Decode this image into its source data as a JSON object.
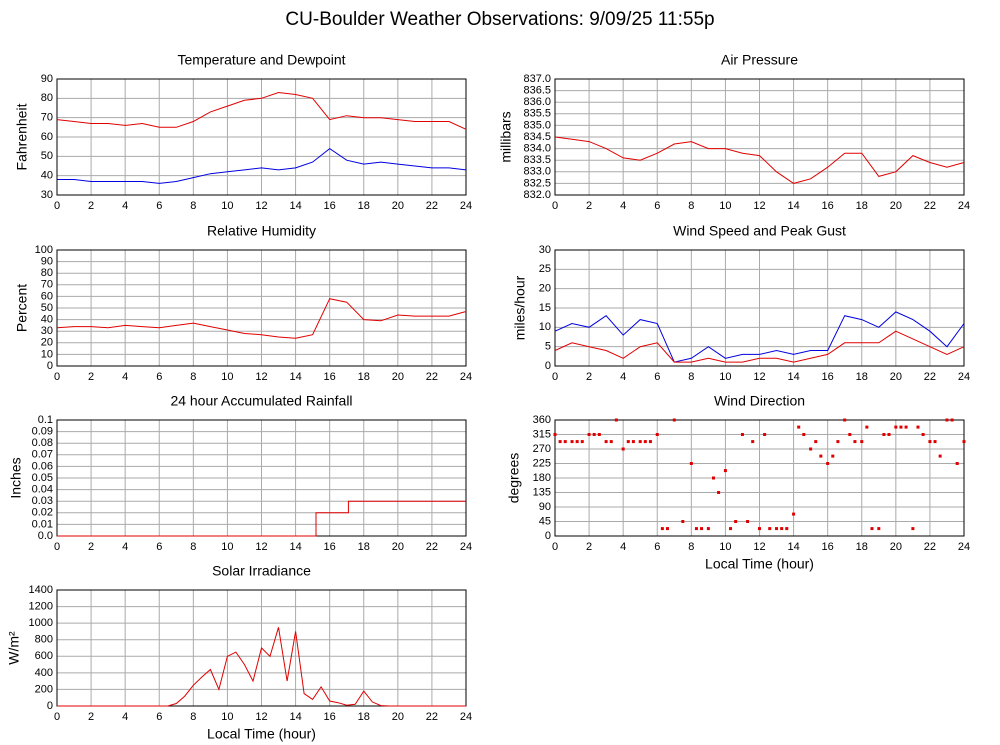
{
  "title": "CU-Boulder Weather Observations: 9/09/25 11:55p",
  "chart_data": [
    {
      "type": "line",
      "title": "Temperature and Dewpoint",
      "ylabel": "Fahrenheit",
      "x": [
        0,
        1,
        2,
        3,
        4,
        5,
        6,
        7,
        8,
        9,
        10,
        11,
        12,
        13,
        14,
        15,
        16,
        17,
        18,
        19,
        20,
        21,
        22,
        23,
        24
      ],
      "series": [
        {
          "color": "#e00000",
          "values": [
            69,
            68,
            67,
            67,
            66,
            67,
            65,
            65,
            68,
            73,
            76,
            79,
            80,
            83,
            82,
            80,
            69,
            71,
            70,
            70,
            69,
            68,
            68,
            68,
            64
          ]
        },
        {
          "color": "#0000e0",
          "values": [
            38,
            38,
            37,
            37,
            37,
            37,
            36,
            37,
            39,
            41,
            42,
            43,
            44,
            43,
            44,
            47,
            54,
            48,
            46,
            47,
            46,
            45,
            44,
            44,
            43
          ]
        }
      ],
      "xlim": [
        0,
        24
      ],
      "xticks": [
        0,
        2,
        4,
        6,
        8,
        10,
        12,
        14,
        16,
        18,
        20,
        22,
        24
      ],
      "ylim": [
        30,
        90
      ],
      "yticks": [
        30,
        40,
        50,
        60,
        70,
        80,
        90
      ],
      "grid": true
    },
    {
      "type": "line",
      "title": "Air Pressure",
      "ylabel": "millibars",
      "x": [
        0,
        1,
        2,
        3,
        4,
        5,
        6,
        7,
        8,
        9,
        10,
        11,
        12,
        13,
        14,
        15,
        16,
        17,
        18,
        19,
        20,
        21,
        22,
        23,
        24
      ],
      "series": [
        {
          "color": "#e00000",
          "values": [
            834.5,
            834.4,
            834.3,
            834.0,
            833.6,
            833.5,
            833.8,
            834.2,
            834.3,
            834.0,
            834.0,
            833.8,
            833.7,
            833.0,
            832.5,
            832.7,
            833.2,
            833.8,
            833.8,
            832.8,
            833.0,
            833.7,
            833.4,
            833.2,
            833.4
          ]
        }
      ],
      "xlim": [
        0,
        24
      ],
      "xticks": [
        0,
        2,
        4,
        6,
        8,
        10,
        12,
        14,
        16,
        18,
        20,
        22,
        24
      ],
      "ylim": [
        832,
        837
      ],
      "yticks": [
        {
          "value": 832,
          "label": "832.0"
        },
        832.5,
        {
          "value": 833,
          "label": "833.0"
        },
        833.5,
        {
          "value": 834,
          "label": "834.0"
        },
        834.5,
        {
          "value": 835,
          "label": "835.0"
        },
        835.5,
        {
          "value": 836,
          "label": "836.0"
        },
        836.5,
        {
          "value": 837,
          "label": "837.0"
        }
      ],
      "grid": true
    },
    {
      "type": "line",
      "title": "Relative Humidity",
      "ylabel": "Percent",
      "x": [
        0,
        1,
        2,
        3,
        4,
        5,
        6,
        7,
        8,
        9,
        10,
        11,
        12,
        13,
        14,
        15,
        16,
        17,
        18,
        19,
        20,
        21,
        22,
        23,
        24
      ],
      "series": [
        {
          "color": "#e00000",
          "values": [
            33,
            34,
            34,
            33,
            35,
            34,
            33,
            35,
            37,
            34,
            31,
            28,
            27,
            25,
            24,
            27,
            58,
            55,
            40,
            39,
            44,
            43,
            43,
            43,
            47
          ]
        }
      ],
      "xlim": [
        0,
        24
      ],
      "xticks": [
        0,
        2,
        4,
        6,
        8,
        10,
        12,
        14,
        16,
        18,
        20,
        22,
        24
      ],
      "ylim": [
        0,
        100
      ],
      "yticks": [
        0,
        10,
        20,
        30,
        40,
        50,
        60,
        70,
        80,
        90,
        100
      ],
      "grid": true
    },
    {
      "type": "line",
      "title": "Wind Speed and Peak Gust",
      "ylabel": "miles/hour",
      "x": [
        0,
        1,
        2,
        3,
        4,
        5,
        6,
        7,
        8,
        9,
        10,
        11,
        12,
        13,
        14,
        15,
        16,
        17,
        18,
        19,
        20,
        21,
        22,
        23,
        24
      ],
      "series": [
        {
          "color": "#0000e0",
          "values": [
            9,
            11,
            10,
            13,
            8,
            12,
            11,
            1,
            2,
            5,
            2,
            3,
            3,
            4,
            3,
            4,
            4,
            13,
            12,
            10,
            14,
            12,
            9,
            5,
            11
          ]
        },
        {
          "color": "#e00000",
          "values": [
            4,
            6,
            5,
            4,
            2,
            5,
            6,
            1,
            1,
            2,
            1,
            1,
            2,
            2,
            1,
            2,
            3,
            6,
            6,
            6,
            9,
            7,
            5,
            3,
            5
          ]
        }
      ],
      "xlim": [
        0,
        24
      ],
      "xticks": [
        0,
        2,
        4,
        6,
        8,
        10,
        12,
        14,
        16,
        18,
        20,
        22,
        24
      ],
      "ylim": [
        0,
        30
      ],
      "yticks": [
        0,
        5,
        10,
        15,
        20,
        25,
        30
      ],
      "grid": true
    },
    {
      "type": "line",
      "title": "24 hour Accumulated Rainfall",
      "ylabel": "Inches",
      "x": [
        0,
        15.2,
        15.2,
        17.1,
        17.1,
        24
      ],
      "series": [
        {
          "color": "#e00000",
          "values": [
            0,
            0,
            0.02,
            0.02,
            0.03,
            0.03
          ]
        }
      ],
      "xlim": [
        0,
        24
      ],
      "xticks": [
        0,
        2,
        4,
        6,
        8,
        10,
        12,
        14,
        16,
        18,
        20,
        22,
        24
      ],
      "ylim": [
        0,
        0.1
      ],
      "yticks": [
        {
          "value": 0,
          "label": "0.0"
        },
        0.01,
        0.02,
        0.03,
        0.04,
        0.05,
        0.06,
        0.07,
        0.08,
        0.09,
        0.1
      ],
      "grid": true
    },
    {
      "type": "scatter",
      "title": "Wind Direction",
      "ylabel": "degrees",
      "xlabel": "Local Time (hour)",
      "x": [
        0,
        0.3,
        0.6,
        1,
        1.3,
        1.6,
        2,
        2.3,
        2.6,
        3,
        3.3,
        3.6,
        4,
        4.3,
        4.6,
        5,
        5.3,
        5.6,
        6,
        6.3,
        6.6,
        7,
        7.5,
        8,
        8.3,
        8.6,
        9,
        9.3,
        9.6,
        10,
        10.3,
        10.6,
        11,
        11.3,
        11.6,
        12,
        12.3,
        12.6,
        13,
        13.3,
        13.6,
        14,
        14.3,
        14.6,
        15,
        15.3,
        15.6,
        16,
        16.3,
        16.6,
        17,
        17.3,
        17.6,
        18,
        18.3,
        18.6,
        19,
        19.3,
        19.6,
        20,
        20.3,
        20.6,
        21,
        21.3,
        21.6,
        22,
        22.3,
        22.6,
        23,
        23.3,
        23.6,
        24
      ],
      "series": [
        {
          "color": "#e00000",
          "values": [
            315,
            293,
            293,
            293,
            293,
            293,
            315,
            315,
            315,
            293,
            293,
            360,
            270,
            293,
            293,
            293,
            293,
            293,
            315,
            23,
            23,
            360,
            45,
            225,
            23,
            23,
            23,
            180,
            135,
            203,
            23,
            45,
            315,
            45,
            293,
            23,
            315,
            23,
            23,
            23,
            23,
            68,
            338,
            315,
            270,
            293,
            248,
            225,
            248,
            293,
            360,
            315,
            293,
            293,
            338,
            23,
            23,
            315,
            315,
            338,
            338,
            338,
            23,
            338,
            315,
            293,
            293,
            248,
            360,
            360,
            225,
            293
          ]
        }
      ],
      "xlim": [
        0,
        24
      ],
      "xticks": [
        0,
        2,
        4,
        6,
        8,
        10,
        12,
        14,
        16,
        18,
        20,
        22,
        24
      ],
      "ylim": [
        0,
        360
      ],
      "yticks": [
        0,
        45,
        90,
        135,
        180,
        225,
        270,
        315,
        360
      ],
      "grid": true
    },
    {
      "type": "line",
      "title": "Solar Irradiance",
      "ylabel": "W/m²",
      "xlabel": "Local Time (hour)",
      "x": [
        0,
        0.5,
        1,
        1.5,
        2,
        2.5,
        3,
        3.5,
        4,
        4.5,
        5,
        5.5,
        6,
        6.5,
        7,
        7.5,
        8,
        8.5,
        9,
        9.5,
        10,
        10.5,
        11,
        11.5,
        12,
        12.5,
        13,
        13.5,
        14,
        14.5,
        15,
        15.5,
        16,
        16.5,
        17,
        17.5,
        18,
        18.5,
        19,
        19.5,
        20,
        20.5,
        21,
        21.5,
        22,
        22.5,
        23,
        23.5,
        24
      ],
      "series": [
        {
          "color": "#e00000",
          "values": [
            0,
            0,
            0,
            0,
            0,
            0,
            0,
            0,
            0,
            0,
            0,
            0,
            0,
            0,
            30,
            120,
            250,
            350,
            440,
            200,
            600,
            650,
            500,
            300,
            700,
            600,
            950,
            300,
            900,
            150,
            80,
            230,
            60,
            40,
            10,
            20,
            180,
            50,
            5,
            0,
            0,
            0,
            0,
            0,
            0,
            0,
            0,
            0,
            0
          ]
        }
      ],
      "xlim": [
        0,
        24
      ],
      "xticks": [
        0,
        2,
        4,
        6,
        8,
        10,
        12,
        14,
        16,
        18,
        20,
        22,
        24
      ],
      "ylim": [
        0,
        1400
      ],
      "yticks": [
        0,
        200,
        400,
        600,
        800,
        1000,
        1200,
        1400
      ],
      "grid": true
    }
  ]
}
